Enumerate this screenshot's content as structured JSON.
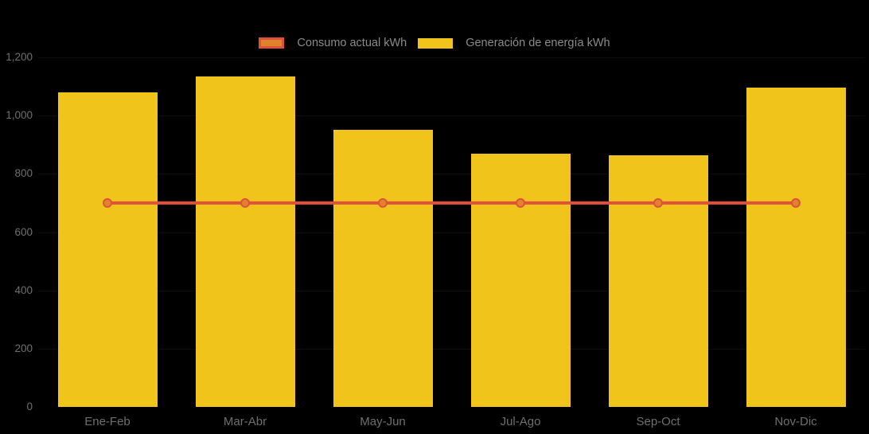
{
  "chart_data": {
    "type": "bar+line",
    "categories": [
      "Ene-Feb",
      "Mar-Abr",
      "May-Jun",
      "Jul-Ago",
      "Sep-Oct",
      "Nov-Dic"
    ],
    "series": [
      {
        "name": "Consumo actual kWh",
        "type": "line",
        "values": [
          700,
          700,
          700,
          700,
          700,
          700
        ],
        "line_color": "#e0513c",
        "marker_fill": "#e1832b",
        "marker_stroke": "#e0513c"
      },
      {
        "name": "Generación de energía kWh",
        "type": "bar",
        "values": [
          1080,
          1135,
          950,
          870,
          865,
          1095
        ],
        "color": "#f0c41b"
      }
    ],
    "ylim": [
      0,
      1200
    ],
    "ytick_step": 200,
    "yticks": [
      {
        "value": 0,
        "label": "0"
      },
      {
        "value": 200,
        "label": "200"
      },
      {
        "value": 400,
        "label": "400"
      },
      {
        "value": 600,
        "label": "600"
      },
      {
        "value": 800,
        "label": "800"
      },
      {
        "value": 1000,
        "label": "1,000"
      },
      {
        "value": 1200,
        "label": "1,200"
      }
    ],
    "xlabel": "",
    "ylabel": "",
    "legend_position": "top-center",
    "grid": "faint-horizontal"
  },
  "colors": {
    "background": "#000000",
    "bar_yellow": "#f0c41b",
    "line_red": "#e0513c",
    "marker_orange": "#e1832b",
    "axis_text": "#6f6f6f",
    "legend_text": "#8b8b8b"
  }
}
